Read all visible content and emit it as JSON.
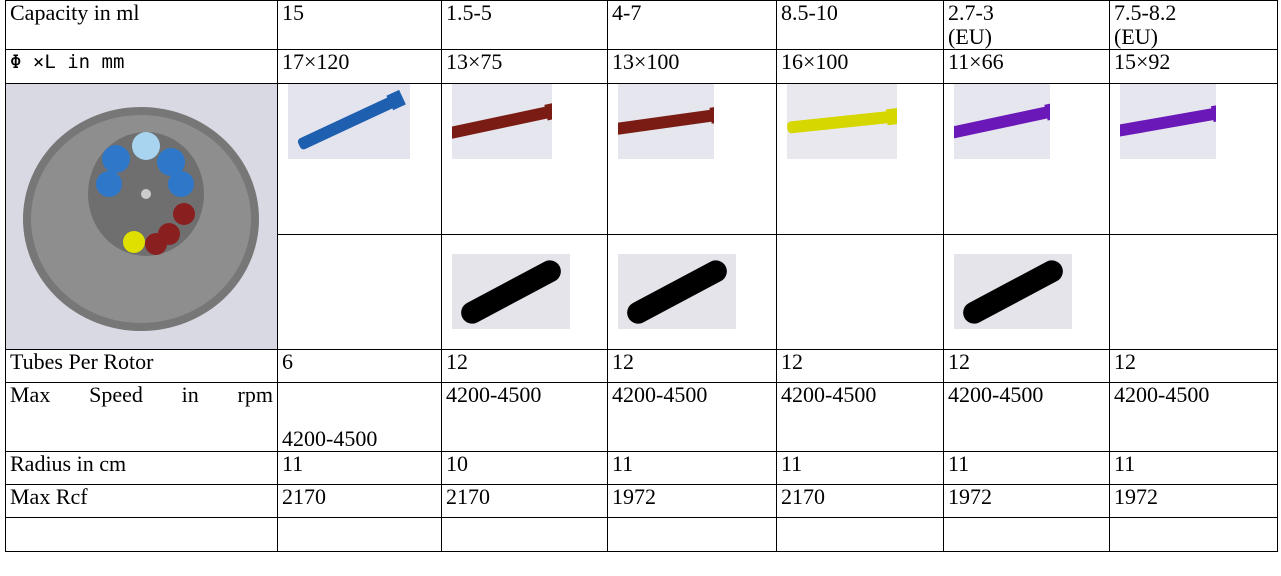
{
  "table": {
    "rows": [
      [
        "Capacity in ml",
        "15",
        "1.5-5",
        "4-7",
        "8.5-10",
        "2.7-3\n(EU)",
        "7.5-8.2\n(EU)"
      ],
      [
        "Φ ×L in mm",
        "17×120",
        "13×75",
        "13×100",
        "16×100",
        "11×66",
        "15×92"
      ],
      [
        "Tubes Per Rotor",
        "6",
        "12",
        "12",
        "12",
        "12",
        "12"
      ],
      [
        "Max Speed in rpm",
        "4200-4500",
        "4200-4500",
        "4200-4500",
        "4200-4500",
        "4200-4500",
        "4200-4500"
      ],
      [
        "Radius in cm",
        "11",
        "10",
        "11",
        "11",
        "11",
        "11"
      ],
      [
        "Max Rcf",
        "2170",
        "2170",
        "1972",
        "2170",
        "1972",
        "1972"
      ]
    ]
  }
}
